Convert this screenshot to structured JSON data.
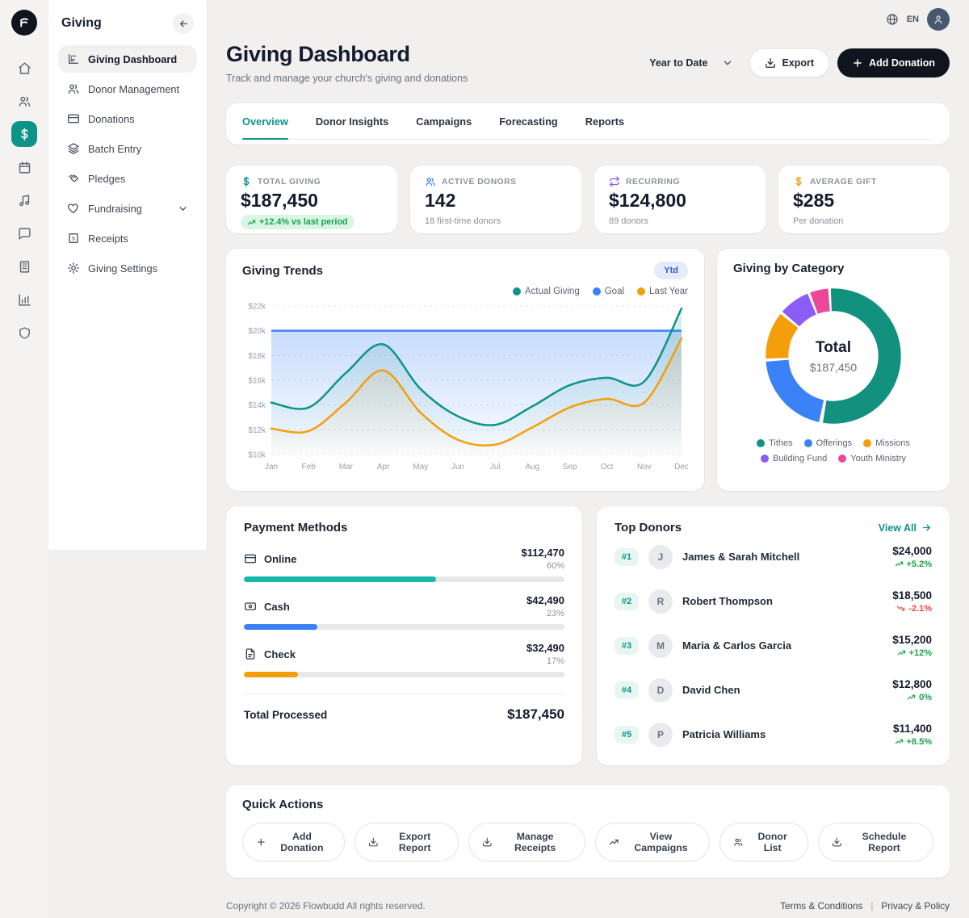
{
  "topbar": {
    "language": "EN"
  },
  "sidebar": {
    "title": "Giving",
    "items": [
      {
        "label": "Giving Dashboard",
        "icon": "bar-chart-icon",
        "active": true
      },
      {
        "label": "Donor Management",
        "icon": "users-icon"
      },
      {
        "label": "Donations",
        "icon": "credit-card-icon"
      },
      {
        "label": "Batch Entry",
        "icon": "layers-icon"
      },
      {
        "label": "Pledges",
        "icon": "handshake-icon"
      },
      {
        "label": "Fundraising",
        "icon": "heart-icon",
        "expandable": true
      },
      {
        "label": "Receipts",
        "icon": "receipt-icon"
      },
      {
        "label": "Giving Settings",
        "icon": "gear-icon"
      }
    ]
  },
  "rail_icons": [
    "home-icon",
    "people-icon",
    "dollar-icon",
    "calendar-icon",
    "music-icon",
    "chat-icon",
    "building-icon",
    "bar-chart-icon",
    "shield-icon"
  ],
  "header": {
    "title": "Giving Dashboard",
    "subtitle": "Track and manage your church's giving and donations",
    "period_selector": "Year to Date",
    "export_label": "Export",
    "add_donation_label": "Add Donation"
  },
  "tabs": [
    {
      "label": "Overview",
      "active": true
    },
    {
      "label": "Donor Insights"
    },
    {
      "label": "Campaigns"
    },
    {
      "label": "Forecasting"
    },
    {
      "label": "Reports"
    }
  ],
  "stats": [
    {
      "label": "TOTAL GIVING",
      "value": "$187,450",
      "badge": "+12.4% vs last period",
      "icon": "dollar-icon",
      "icon_color": "#0d9488"
    },
    {
      "label": "ACTIVE DONORS",
      "value": "142",
      "sub": "18 first-time donors",
      "icon": "users-icon",
      "icon_color": "#3b82f6"
    },
    {
      "label": "RECURRING",
      "value": "$124,800",
      "sub": "89 donors",
      "icon": "repeat-icon",
      "icon_color": "#8b5cf6"
    },
    {
      "label": "AVERAGE GIFT",
      "value": "$285",
      "sub": "Per donation",
      "icon": "dollar-icon",
      "icon_color": "#f59e0b"
    }
  ],
  "trends": {
    "title": "Giving Trends",
    "badge": "Ytd"
  },
  "category": {
    "title": "Giving by Category"
  },
  "payments": {
    "title": "Payment Methods",
    "rows": [
      {
        "label": "Online",
        "icon": "credit-card-icon",
        "amount": "$112,470",
        "pct": 60,
        "pct_label": "60%",
        "color": "#14b8a6"
      },
      {
        "label": "Cash",
        "icon": "banknote-icon",
        "amount": "$42,490",
        "pct": 23,
        "pct_label": "23%",
        "color": "#3b82f6"
      },
      {
        "label": "Check",
        "icon": "document-icon",
        "amount": "$32,490",
        "pct": 17,
        "pct_label": "17%",
        "color": "#f59e0b"
      }
    ],
    "total_label": "Total Processed",
    "total_value": "$187,450"
  },
  "donors": {
    "title": "Top Donors",
    "view_all_label": "View All",
    "rows": [
      {
        "rank": "#1",
        "initial": "J",
        "name": "James & Sarah Mitchell",
        "amount": "$24,000",
        "change": "+5.2%",
        "direction": "up"
      },
      {
        "rank": "#2",
        "initial": "R",
        "name": "Robert Thompson",
        "amount": "$18,500",
        "change": "-2.1%",
        "direction": "down"
      },
      {
        "rank": "#3",
        "initial": "M",
        "name": "Maria & Carlos Garcia",
        "amount": "$15,200",
        "change": "+12%",
        "direction": "up"
      },
      {
        "rank": "#4",
        "initial": "D",
        "name": "David Chen",
        "amount": "$12,800",
        "change": "0%",
        "direction": "up"
      },
      {
        "rank": "#5",
        "initial": "P",
        "name": "Patricia Williams",
        "amount": "$11,400",
        "change": "+8.5%",
        "direction": "up"
      }
    ]
  },
  "quick_actions": {
    "title": "Quick Actions",
    "buttons": [
      {
        "label": "Add Donation",
        "icon": "plus-icon"
      },
      {
        "label": "Export Report",
        "icon": "download-icon"
      },
      {
        "label": "Manage Receipts",
        "icon": "download-icon"
      },
      {
        "label": "View Campaigns",
        "icon": "trend-up-icon"
      },
      {
        "label": "Donor List",
        "icon": "users-icon"
      },
      {
        "label": "Schedule Report",
        "icon": "download-icon"
      }
    ]
  },
  "footer": {
    "copyright": "Copyright © 2026 Flowbudd All rights reserved.",
    "separator": "|",
    "links": [
      {
        "label": "Terms & Conditions"
      },
      {
        "label": "Privacy & Policy"
      }
    ]
  },
  "chart_data": [
    {
      "type": "line",
      "title": "Giving Trends",
      "x": [
        "Jan",
        "Feb",
        "Mar",
        "Apr",
        "May",
        "Jun",
        "Jul",
        "Aug",
        "Sep",
        "Oct",
        "Nov",
        "Dec"
      ],
      "series": [
        {
          "name": "Actual Giving",
          "color": "#0d9488",
          "values": [
            14.2,
            13.8,
            16.6,
            18.9,
            15.3,
            13.1,
            12.4,
            13.9,
            15.6,
            16.2,
            15.9,
            21.8
          ]
        },
        {
          "name": "Goal",
          "color": "#3b82f6",
          "values": [
            20,
            20,
            20,
            20,
            20,
            20,
            20,
            20,
            20,
            20,
            20,
            20
          ]
        },
        {
          "name": "Last Year",
          "color": "#f59e0b",
          "values": [
            12.1,
            11.9,
            14.2,
            16.8,
            13.4,
            11.2,
            10.8,
            12.2,
            13.8,
            14.5,
            14.2,
            19.4
          ]
        }
      ],
      "unit": "thousands USD",
      "ylim": [
        10,
        22
      ],
      "ytick_step": 2,
      "grid": true,
      "legend_position": "top-right"
    },
    {
      "type": "donut",
      "title": "Giving by Category",
      "labels": [
        "Tithes",
        "Offerings",
        "Missions",
        "Building Fund",
        "Youth Ministry"
      ],
      "values": [
        54,
        21,
        12,
        8,
        5
      ],
      "colors": [
        "#12917f",
        "#3b82f6",
        "#f59e0b",
        "#8b5cf6",
        "#ec4899"
      ],
      "center": {
        "label": "Total",
        "value": "$187,450"
      }
    }
  ]
}
